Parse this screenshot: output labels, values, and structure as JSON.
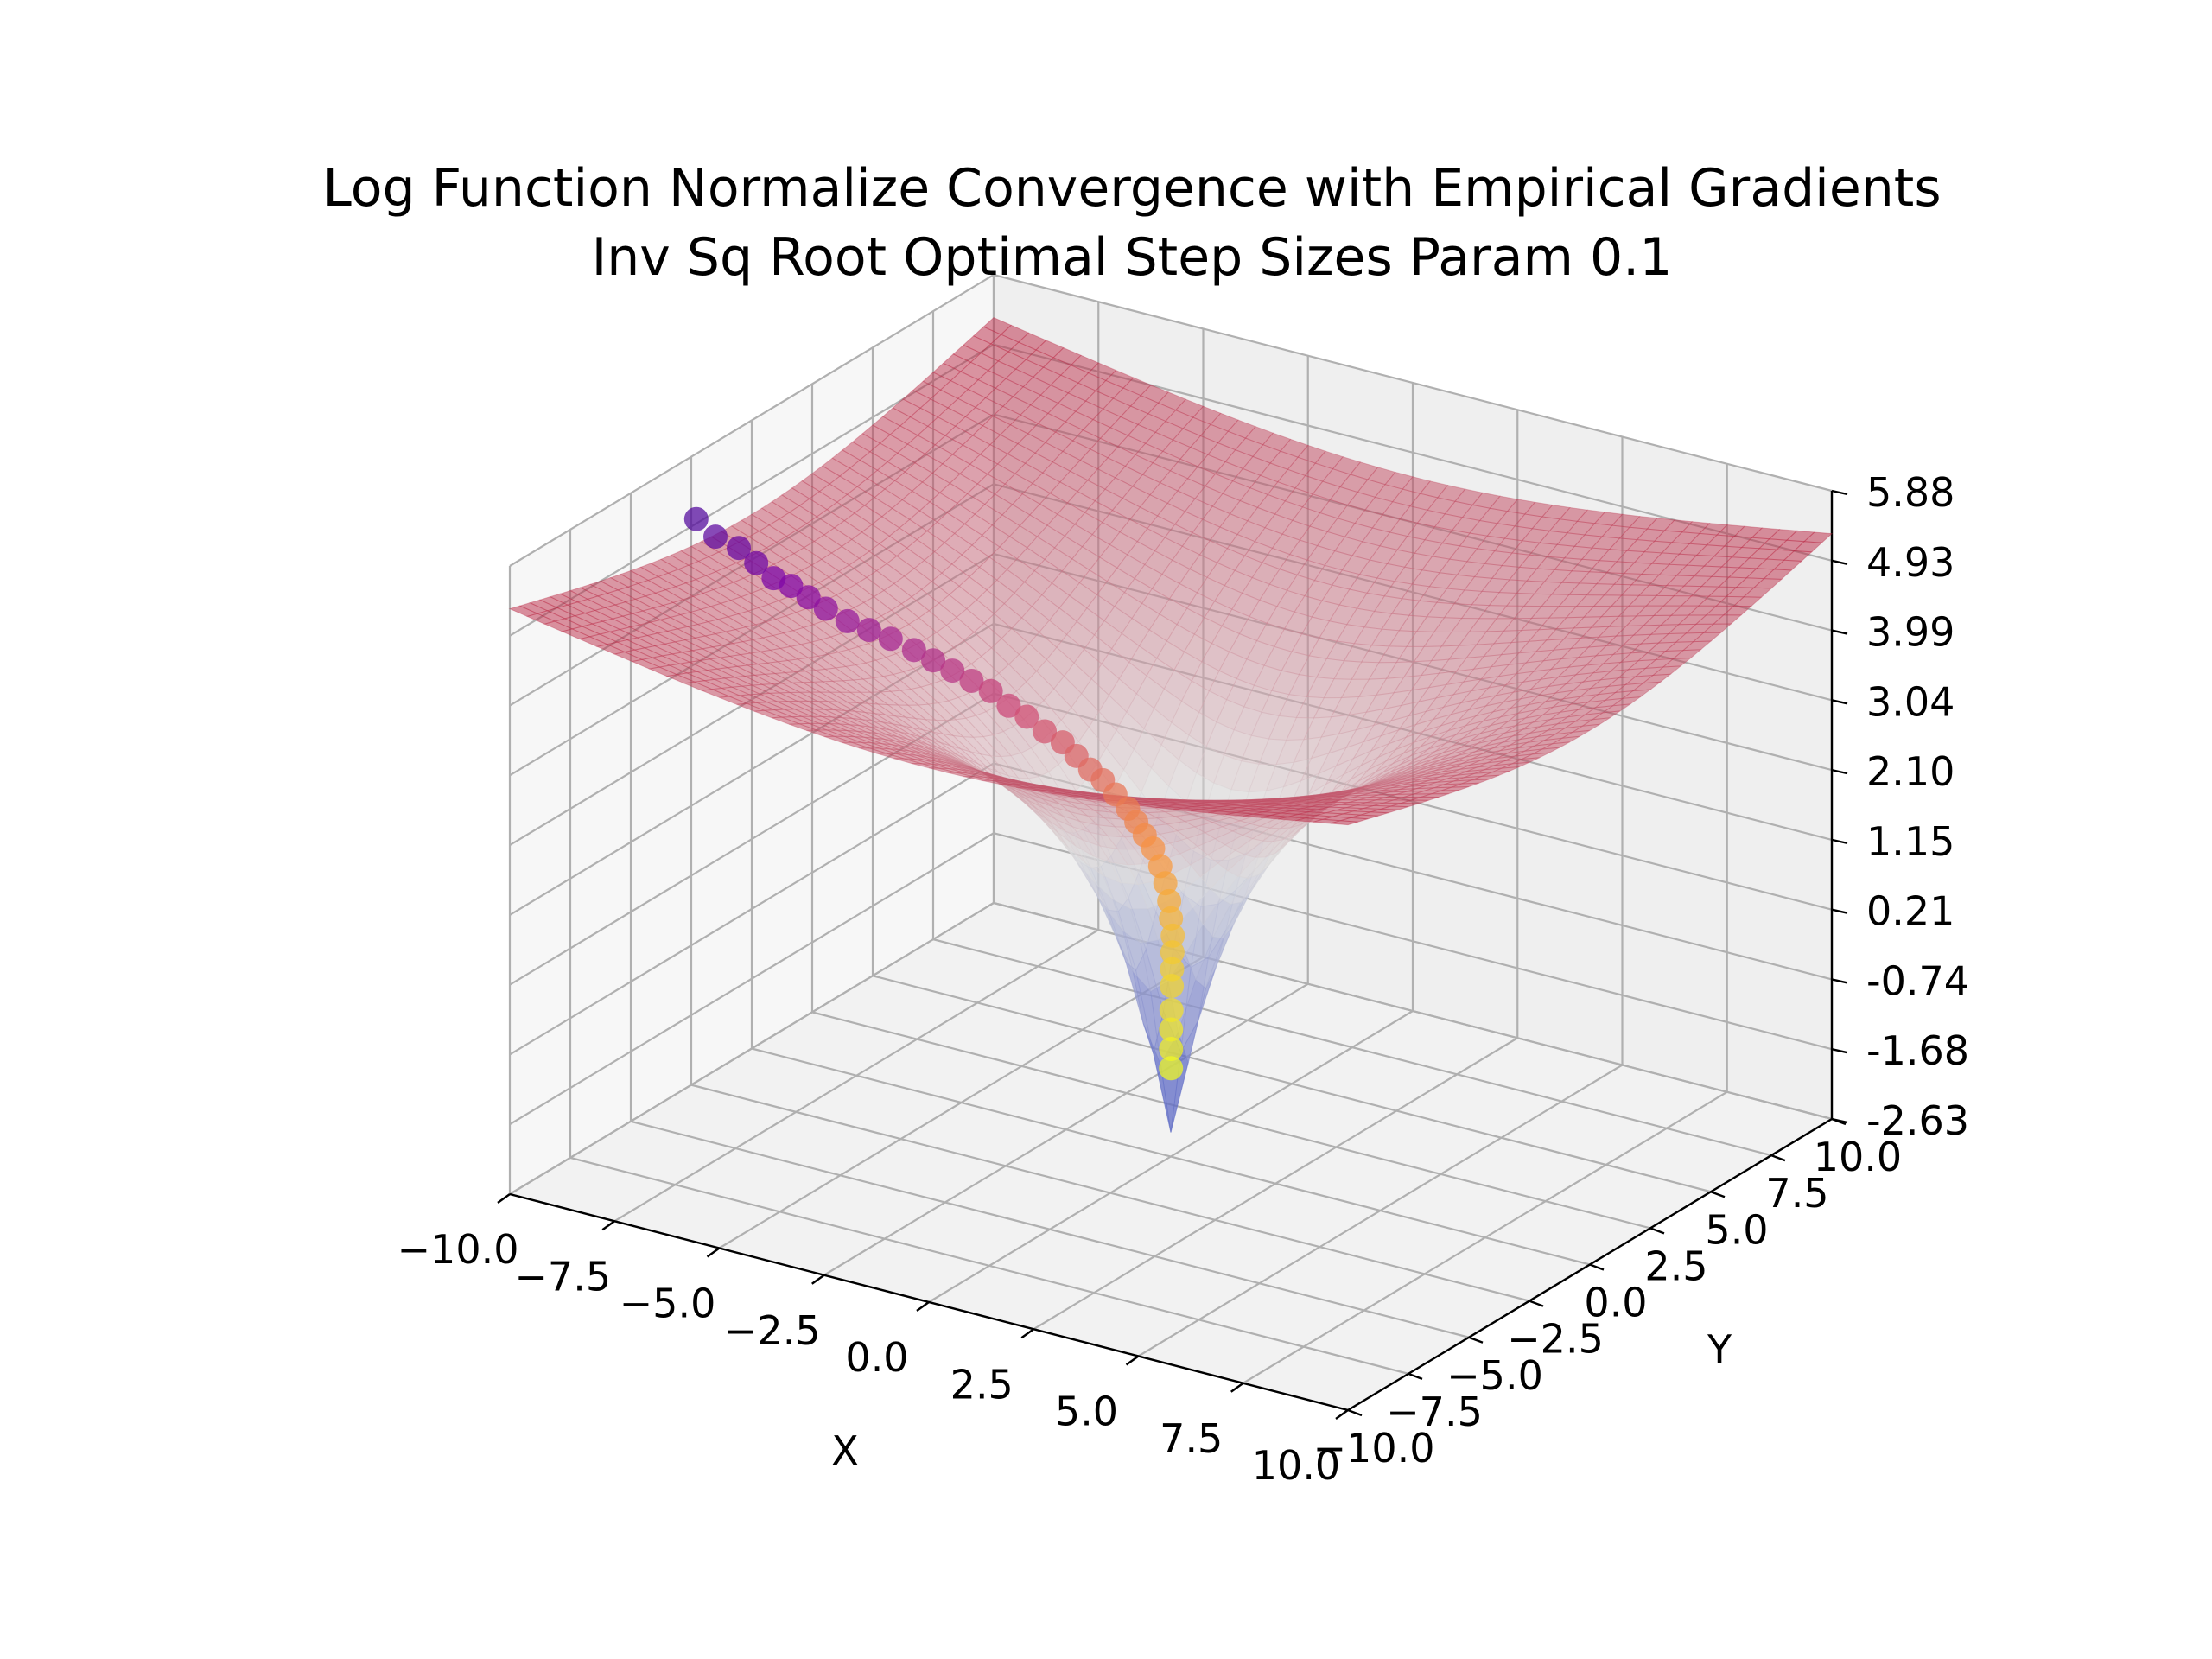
{
  "chart_data": {
    "type": "surface3d",
    "title": "Log Function Normalize Convergence with Empirical Gradients",
    "subtitle": "Inv Sq Root Optimal Step Sizes Param 0.1",
    "xlabel": "X",
    "ylabel": "Y",
    "zlabel": "",
    "xlim": [
      -10,
      10
    ],
    "ylim": [
      -10,
      10
    ],
    "zlim": [
      -2.63,
      5.88
    ],
    "x_ticks": [
      "−10.0",
      "−7.5",
      "−5.0",
      "−2.5",
      "0.0",
      "2.5",
      "5.0",
      "7.5",
      "10.0"
    ],
    "y_ticks": [
      "−10.0",
      "−7.5",
      "−5.0",
      "−2.5",
      "0.0",
      "2.5",
      "5.0",
      "7.5",
      "10.0"
    ],
    "z_ticks": [
      "-2.63",
      "-1.68",
      "-0.74",
      "0.21",
      "1.15",
      "2.10",
      "3.04",
      "3.99",
      "4.93",
      "5.88"
    ],
    "grid": true,
    "surface": {
      "colormap": "coolwarm",
      "alpha": 0.5
    },
    "trajectory": {
      "colormap": "plasma",
      "points": [
        {
          "x": -10.4,
          "y": -1.6,
          "z": 4.8
        },
        {
          "x": -10.0,
          "y": -1.5,
          "z": 4.6
        },
        {
          "x": -9.5,
          "y": -1.4,
          "z": 4.5
        },
        {
          "x": -9.2,
          "y": -1.2,
          "z": 4.3
        },
        {
          "x": -8.9,
          "y": -1.0,
          "z": 4.1
        },
        {
          "x": -8.6,
          "y": -0.8,
          "z": 4.0
        },
        {
          "x": -8.3,
          "y": -0.6,
          "z": 3.85
        },
        {
          "x": -8.0,
          "y": -0.4,
          "z": 3.7
        },
        {
          "x": -7.6,
          "y": -0.2,
          "z": 3.55
        },
        {
          "x": -7.2,
          "y": 0.0,
          "z": 3.45
        },
        {
          "x": -6.8,
          "y": 0.2,
          "z": 3.35
        },
        {
          "x": -6.3,
          "y": 0.3,
          "z": 3.25
        },
        {
          "x": -5.9,
          "y": 0.4,
          "z": 3.15
        },
        {
          "x": -5.5,
          "y": 0.5,
          "z": 3.05
        },
        {
          "x": -5.1,
          "y": 0.6,
          "z": 2.95
        },
        {
          "x": -4.7,
          "y": 0.7,
          "z": 2.85
        },
        {
          "x": -4.3,
          "y": 0.75,
          "z": 2.7
        },
        {
          "x": -3.9,
          "y": 0.8,
          "z": 2.6
        },
        {
          "x": -3.5,
          "y": 0.85,
          "z": 2.45
        },
        {
          "x": -3.1,
          "y": 0.9,
          "z": 2.35
        },
        {
          "x": -2.8,
          "y": 0.95,
          "z": 2.2
        },
        {
          "x": -2.5,
          "y": 1.0,
          "z": 2.05
        },
        {
          "x": -2.2,
          "y": 1.0,
          "z": 1.95
        },
        {
          "x": -1.9,
          "y": 1.0,
          "z": 1.8
        },
        {
          "x": -1.6,
          "y": 1.0,
          "z": 1.65
        },
        {
          "x": -1.4,
          "y": 1.0,
          "z": 1.5
        },
        {
          "x": -1.2,
          "y": 1.0,
          "z": 1.35
        },
        {
          "x": -1.0,
          "y": 1.0,
          "z": 1.2
        },
        {
          "x": -0.8,
          "y": 0.95,
          "z": 1.0
        },
        {
          "x": -0.65,
          "y": 0.9,
          "z": 0.8
        },
        {
          "x": -0.5,
          "y": 0.8,
          "z": 0.6
        },
        {
          "x": -0.4,
          "y": 0.7,
          "z": 0.4
        },
        {
          "x": -0.3,
          "y": 0.6,
          "z": 0.2
        },
        {
          "x": -0.25,
          "y": 0.5,
          "z": 0.0
        },
        {
          "x": -0.2,
          "y": 0.4,
          "z": -0.2
        },
        {
          "x": -0.15,
          "y": 0.3,
          "z": -0.4
        },
        {
          "x": -0.1,
          "y": 0.2,
          "z": -0.7
        },
        {
          "x": -0.08,
          "y": 0.15,
          "z": -0.95
        },
        {
          "x": -0.05,
          "y": 0.1,
          "z": -1.2
        },
        {
          "x": -0.03,
          "y": 0.06,
          "z": -1.45
        }
      ]
    }
  }
}
